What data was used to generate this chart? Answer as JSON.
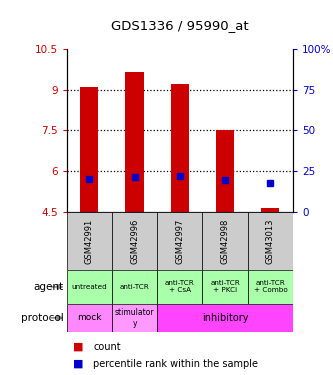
{
  "title": "GDS1336 / 95990_at",
  "samples": [
    "GSM42991",
    "GSM42996",
    "GSM42997",
    "GSM42998",
    "GSM43013"
  ],
  "bar_bottom": [
    4.5,
    4.5,
    4.5,
    4.5,
    4.5
  ],
  "bar_top": [
    9.1,
    9.65,
    9.2,
    7.5,
    4.65
  ],
  "percentile_y": [
    5.72,
    5.78,
    5.82,
    5.68,
    5.55
  ],
  "ylim": [
    4.5,
    10.5
  ],
  "y_left_ticks": [
    4.5,
    6.0,
    7.5,
    9.0,
    10.5
  ],
  "y_right_ticks": [
    0,
    25,
    50,
    75,
    100
  ],
  "dotted_lines": [
    6.0,
    7.5,
    9.0
  ],
  "bar_color": "#cc0000",
  "percentile_color": "#0000cc",
  "agent_labels": [
    "untreated",
    "anti-TCR",
    "anti-TCR\n+ CsA",
    "anti-TCR\n+ PKCi",
    "anti-TCR\n+ Combo"
  ],
  "agent_bg": "#aaffaa",
  "gsm_bg": "#cccccc",
  "mock_bg": "#ff88ff",
  "stimulatory_bg": "#ff99ff",
  "inhibitory_bg": "#ff44ff",
  "left_label_color": "#cc0000",
  "right_label_color": "#0000cc"
}
